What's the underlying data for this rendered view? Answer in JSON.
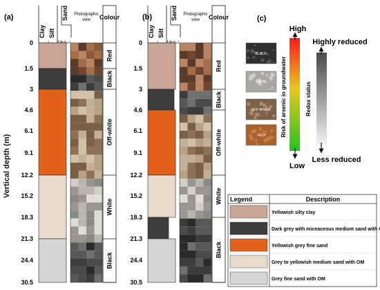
{
  "y_axis_title": "Vertical depth (m)",
  "panels": [
    {
      "label": "(a)",
      "header": {
        "clay": "Clay",
        "silt": "Silt",
        "sand": "Sand",
        "sand_sizes": "f m c",
        "photo": "Photographic view",
        "colour": "Colour"
      },
      "depths": [
        "0",
        "1.5",
        "3",
        "4.6",
        "6.1",
        "9.1",
        "12.2",
        "15.2",
        "18.3",
        "21.3",
        "24.4",
        "30.5"
      ],
      "layers": [
        {
          "from": "0",
          "to": "1.5",
          "legend_ref": 1
        },
        {
          "from": "1.5",
          "to": "3",
          "legend_ref": 2
        },
        {
          "from": "3",
          "to": "12.2",
          "legend_ref": 3
        },
        {
          "from": "12.2",
          "to": "21.3",
          "legend_ref": 4
        },
        {
          "from": "21.3",
          "to": "30.5",
          "legend_ref": 5
        }
      ],
      "colour_zones": [
        {
          "text": "Red",
          "from": "0",
          "to": "1.5"
        },
        {
          "text": "Black",
          "from": "1.5",
          "to": "3"
        },
        {
          "text": "Off-white",
          "from": "3",
          "to": "12.2"
        },
        {
          "text": "White",
          "from": "12.2",
          "to": "21.3"
        },
        {
          "text": "Black",
          "from": "21.3",
          "to": "30.5"
        }
      ]
    },
    {
      "label": "(b)",
      "header": {
        "clay": "Clay",
        "silt": "Silt",
        "sand": "Sand",
        "sand_sizes": "f m c",
        "photo": "Photographic view",
        "colour": "Colour"
      },
      "depths": [
        "0",
        "1.5",
        "3",
        "4.6",
        "6.1",
        "9.1",
        "12.2",
        "15.2",
        "18.3",
        "21.3",
        "24.4",
        "30.5"
      ],
      "layers": [
        {
          "from": "0",
          "to": "3",
          "legend_ref": 1
        },
        {
          "from": "3",
          "to": "4.6",
          "legend_ref": 2
        },
        {
          "from": "4.6",
          "to": "12.2",
          "legend_ref": 3
        },
        {
          "from": "12.2",
          "to": "18.3",
          "legend_ref": 4
        },
        {
          "from": "18.3",
          "to": "21.3",
          "legend_ref": 2
        },
        {
          "from": "21.3",
          "to": "30.5",
          "legend_ref": 5
        }
      ],
      "colour_zones": [
        {
          "text": "Red",
          "from": "0",
          "to": "3"
        },
        {
          "text": "Black",
          "from": "3",
          "to": "4.6"
        },
        {
          "text": "Off-white",
          "from": "4.6",
          "to": "12.2"
        },
        {
          "text": "White",
          "from": "12.2",
          "to": "18.3"
        },
        {
          "text": "Black",
          "from": "18.3",
          "to": "30.5"
        }
      ]
    }
  ],
  "panel_c": {
    "label": "(c)",
    "samples": [
      "BLACK",
      "WHITE",
      "OFF-WHITE",
      "RED"
    ],
    "arsenic_label": "Risk of arsenic in groundwater",
    "arsenic_high": "High",
    "arsenic_low": "Low",
    "redox_label": "Redox status",
    "redox_top": "Highly reduced",
    "redox_bottom": "Less reduced"
  },
  "legend": {
    "col1": "Legend",
    "col2": "Description",
    "items": [
      {
        "id": 1,
        "color": "#c8a596",
        "text": "Yellowish silty clay"
      },
      {
        "id": 2,
        "color": "#3d3d3d",
        "text": "Dark grey with miceaceous medium sand with OM"
      },
      {
        "id": 3,
        "color": "#e2601a",
        "text": "Yellowish grey fine sand"
      },
      {
        "id": 4,
        "color": "#eadccd",
        "text": "Grey to yellowish medium sand with OM"
      },
      {
        "id": 5,
        "color": "#d5d5d5",
        "text": "Grey fine sand with OM"
      }
    ]
  }
}
